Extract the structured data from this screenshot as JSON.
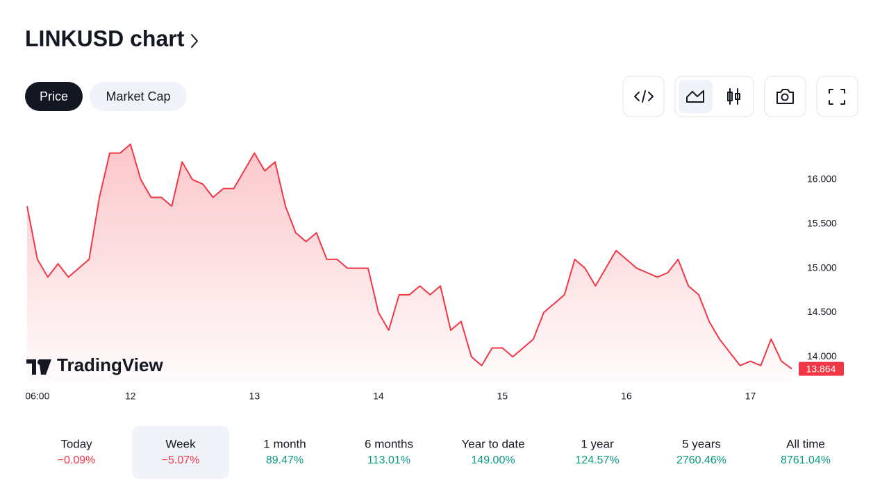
{
  "header": {
    "title": "LINKUSD chart"
  },
  "tabs": [
    {
      "label": "Price",
      "active": true
    },
    {
      "label": "Market Cap",
      "active": false
    }
  ],
  "watermark": "TradingView",
  "chart_data": {
    "type": "line",
    "color": "#f23645",
    "values": [
      15.7,
      15.1,
      14.9,
      15.05,
      14.9,
      15.0,
      15.1,
      15.8,
      16.3,
      16.3,
      16.4,
      16.0,
      15.8,
      15.8,
      15.7,
      16.2,
      16.0,
      15.95,
      15.8,
      15.9,
      15.9,
      16.1,
      16.3,
      16.1,
      16.2,
      15.7,
      15.4,
      15.3,
      15.4,
      15.1,
      15.1,
      15.0,
      15.0,
      15.0,
      14.5,
      14.3,
      14.7,
      14.7,
      14.8,
      14.7,
      14.8,
      14.3,
      14.4,
      14.0,
      13.9,
      14.1,
      14.1,
      14.0,
      14.1,
      14.2,
      14.5,
      14.6,
      14.7,
      15.1,
      15.0,
      14.8,
      15.0,
      15.2,
      15.1,
      15.0,
      14.95,
      14.9,
      14.95,
      15.1,
      14.8,
      14.7,
      14.4,
      14.2,
      14.05,
      13.9,
      13.95,
      13.9,
      14.2,
      13.95,
      13.864
    ],
    "xlim": [
      0,
      74
    ],
    "xticks": [
      {
        "value": 1,
        "label": "06:00"
      },
      {
        "value": 10,
        "label": "12"
      },
      {
        "value": 22,
        "label": "13"
      },
      {
        "value": 34,
        "label": "14"
      },
      {
        "value": 46,
        "label": "15"
      },
      {
        "value": 58,
        "label": "16"
      },
      {
        "value": 70,
        "label": "17"
      }
    ],
    "ylim": [
      13.72,
      16.54
    ],
    "yticks": [
      {
        "value": 14,
        "label": "14.000"
      },
      {
        "value": 14.5,
        "label": "14.500"
      },
      {
        "value": 15,
        "label": "15.000"
      },
      {
        "value": 15.5,
        "label": "15.500"
      },
      {
        "value": 16,
        "label": "16.000"
      }
    ],
    "current_price": 13.864,
    "current_price_label": "13.864"
  },
  "periods": [
    {
      "label": "Today",
      "change": "−0.09%",
      "direction": "down",
      "active": false
    },
    {
      "label": "Week",
      "change": "−5.07%",
      "direction": "down",
      "active": true
    },
    {
      "label": "1 month",
      "change": "89.47%",
      "direction": "up",
      "active": false
    },
    {
      "label": "6 months",
      "change": "113.01%",
      "direction": "up",
      "active": false
    },
    {
      "label": "Year to date",
      "change": "149.00%",
      "direction": "up",
      "active": false
    },
    {
      "label": "1 year",
      "change": "124.57%",
      "direction": "up",
      "active": false
    },
    {
      "label": "5 years",
      "change": "2760.46%",
      "direction": "up",
      "active": false
    },
    {
      "label": "All time",
      "change": "8761.04%",
      "direction": "up",
      "active": false
    }
  ]
}
